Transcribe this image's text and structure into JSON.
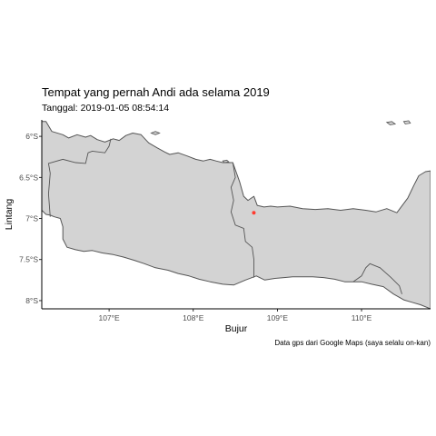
{
  "title": "Tempat yang pernah Andi ada selama 2019",
  "subtitle": "Tanggal: 2019-01-05 08:54:14",
  "caption": "Data gps dari Google Maps (saya selalu on-kan)",
  "colors": {
    "land": "#d3d3d3",
    "coast": "#555555",
    "point": "#ff3b30",
    "axis": "#000000"
  },
  "chart_data": {
    "type": "scatter",
    "xlabel": "Bujur",
    "ylabel": "Lintang",
    "xlim": [
      106.2,
      110.82
    ],
    "ylim": [
      -8.1,
      -5.8
    ],
    "x_ticks": [
      {
        "value": 107,
        "label": "107°E"
      },
      {
        "value": 108,
        "label": "108°E"
      },
      {
        "value": 109,
        "label": "109°E"
      },
      {
        "value": 110,
        "label": "110°E"
      }
    ],
    "y_ticks": [
      {
        "value": -6,
        "label": "6°S"
      },
      {
        "value": -6.5,
        "label": "6.5°S"
      },
      {
        "value": -7,
        "label": "7°S"
      },
      {
        "value": -7.5,
        "label": "7.5°S"
      },
      {
        "value": -8,
        "label": "8°S"
      }
    ],
    "points": [
      {
        "x": 108.72,
        "y": -6.93
      }
    ],
    "land": [
      [
        106.25,
        -5.82
      ],
      [
        106.32,
        -5.94
      ],
      [
        106.45,
        -5.98
      ],
      [
        106.52,
        -6.02
      ],
      [
        106.62,
        -5.98
      ],
      [
        106.72,
        -6.01
      ],
      [
        106.78,
        -5.99
      ],
      [
        106.86,
        -6.04
      ],
      [
        106.95,
        -6.07
      ],
      [
        107.05,
        -6.03
      ],
      [
        107.12,
        -6.05
      ],
      [
        107.2,
        -5.99
      ],
      [
        107.28,
        -5.96
      ],
      [
        107.38,
        -5.98
      ],
      [
        107.47,
        -6.08
      ],
      [
        107.57,
        -6.14
      ],
      [
        107.66,
        -6.19
      ],
      [
        107.72,
        -6.22
      ],
      [
        107.82,
        -6.2
      ],
      [
        107.93,
        -6.24
      ],
      [
        108.03,
        -6.28
      ],
      [
        108.12,
        -6.3
      ],
      [
        108.2,
        -6.28
      ],
      [
        108.27,
        -6.3
      ],
      [
        108.35,
        -6.32
      ],
      [
        108.47,
        -6.32
      ],
      [
        108.55,
        -6.55
      ],
      [
        108.6,
        -6.73
      ],
      [
        108.65,
        -6.78
      ],
      [
        108.72,
        -6.73
      ],
      [
        108.76,
        -6.84
      ],
      [
        108.84,
        -6.86
      ],
      [
        108.92,
        -6.85
      ],
      [
        109.0,
        -6.86
      ],
      [
        109.15,
        -6.85
      ],
      [
        109.3,
        -6.88
      ],
      [
        109.45,
        -6.89
      ],
      [
        109.6,
        -6.88
      ],
      [
        109.75,
        -6.9
      ],
      [
        109.9,
        -6.88
      ],
      [
        110.05,
        -6.9
      ],
      [
        110.17,
        -6.92
      ],
      [
        110.3,
        -6.88
      ],
      [
        110.42,
        -6.93
      ],
      [
        110.55,
        -6.75
      ],
      [
        110.62,
        -6.6
      ],
      [
        110.68,
        -6.48
      ],
      [
        110.76,
        -6.43
      ],
      [
        110.82,
        -6.42
      ],
      [
        110.82,
        -8.1
      ],
      [
        110.7,
        -8.05
      ],
      [
        110.6,
        -8.02
      ],
      [
        110.5,
        -7.99
      ],
      [
        110.38,
        -7.92
      ],
      [
        110.26,
        -7.83
      ],
      [
        110.12,
        -7.8
      ],
      [
        110.0,
        -7.77
      ],
      [
        109.9,
        -7.77
      ],
      [
        109.8,
        -7.77
      ],
      [
        109.68,
        -7.74
      ],
      [
        109.55,
        -7.72
      ],
      [
        109.42,
        -7.71
      ],
      [
        109.3,
        -7.71
      ],
      [
        109.18,
        -7.71
      ],
      [
        109.08,
        -7.72
      ],
      [
        108.97,
        -7.73
      ],
      [
        108.85,
        -7.75
      ],
      [
        108.75,
        -7.7
      ],
      [
        108.62,
        -7.75
      ],
      [
        108.48,
        -7.81
      ],
      [
        108.35,
        -7.8
      ],
      [
        108.2,
        -7.77
      ],
      [
        108.07,
        -7.74
      ],
      [
        107.95,
        -7.7
      ],
      [
        107.82,
        -7.67
      ],
      [
        107.7,
        -7.63
      ],
      [
        107.55,
        -7.6
      ],
      [
        107.42,
        -7.55
      ],
      [
        107.3,
        -7.51
      ],
      [
        107.17,
        -7.47
      ],
      [
        107.05,
        -7.44
      ],
      [
        106.92,
        -7.42
      ],
      [
        106.8,
        -7.39
      ],
      [
        106.7,
        -7.4
      ],
      [
        106.6,
        -7.38
      ],
      [
        106.5,
        -7.35
      ],
      [
        106.45,
        -7.25
      ],
      [
        106.45,
        -7.1
      ],
      [
        106.42,
        -7.0
      ],
      [
        106.35,
        -6.98
      ],
      [
        106.3,
        -6.96
      ],
      [
        106.25,
        -6.95
      ],
      [
        106.22,
        -6.92
      ],
      [
        106.2,
        -6.9
      ],
      [
        106.2,
        -5.82
      ]
    ],
    "provinces": [
      [
        [
          106.3,
          -6.98
        ],
        [
          106.28,
          -6.7
        ],
        [
          106.3,
          -6.45
        ],
        [
          106.28,
          -6.33
        ],
        [
          106.45,
          -6.28
        ],
        [
          106.6,
          -6.32
        ],
        [
          106.72,
          -6.33
        ],
        [
          106.75,
          -6.2
        ],
        [
          106.8,
          -6.18
        ],
        [
          106.95,
          -6.2
        ],
        [
          107.0,
          -6.12
        ],
        [
          107.02,
          -6.03
        ]
      ],
      [
        [
          108.47,
          -6.32
        ],
        [
          108.5,
          -6.5
        ],
        [
          108.45,
          -6.62
        ],
        [
          108.48,
          -6.78
        ],
        [
          108.45,
          -6.92
        ],
        [
          108.5,
          -7.08
        ],
        [
          108.6,
          -7.12
        ],
        [
          108.62,
          -7.28
        ],
        [
          108.7,
          -7.35
        ],
        [
          108.72,
          -7.5
        ],
        [
          108.72,
          -7.72
        ]
      ],
      [
        [
          109.9,
          -7.77
        ],
        [
          110.0,
          -7.7
        ],
        [
          110.05,
          -7.6
        ],
        [
          110.1,
          -7.55
        ],
        [
          110.22,
          -7.6
        ],
        [
          110.35,
          -7.72
        ],
        [
          110.45,
          -7.82
        ],
        [
          110.48,
          -7.92
        ]
      ]
    ],
    "islets": [
      [
        [
          107.5,
          -5.96
        ],
        [
          107.55,
          -5.94
        ],
        [
          107.6,
          -5.96
        ],
        [
          107.55,
          -5.98
        ]
      ],
      [
        [
          110.3,
          -5.83
        ],
        [
          110.36,
          -5.82
        ],
        [
          110.4,
          -5.85
        ],
        [
          110.34,
          -5.86
        ]
      ],
      [
        [
          110.5,
          -5.82
        ],
        [
          110.56,
          -5.81
        ],
        [
          110.58,
          -5.84
        ],
        [
          110.52,
          -5.85
        ]
      ],
      [
        [
          108.35,
          -6.3
        ],
        [
          108.4,
          -6.29
        ],
        [
          108.42,
          -6.31
        ],
        [
          108.37,
          -6.32
        ]
      ]
    ]
  }
}
